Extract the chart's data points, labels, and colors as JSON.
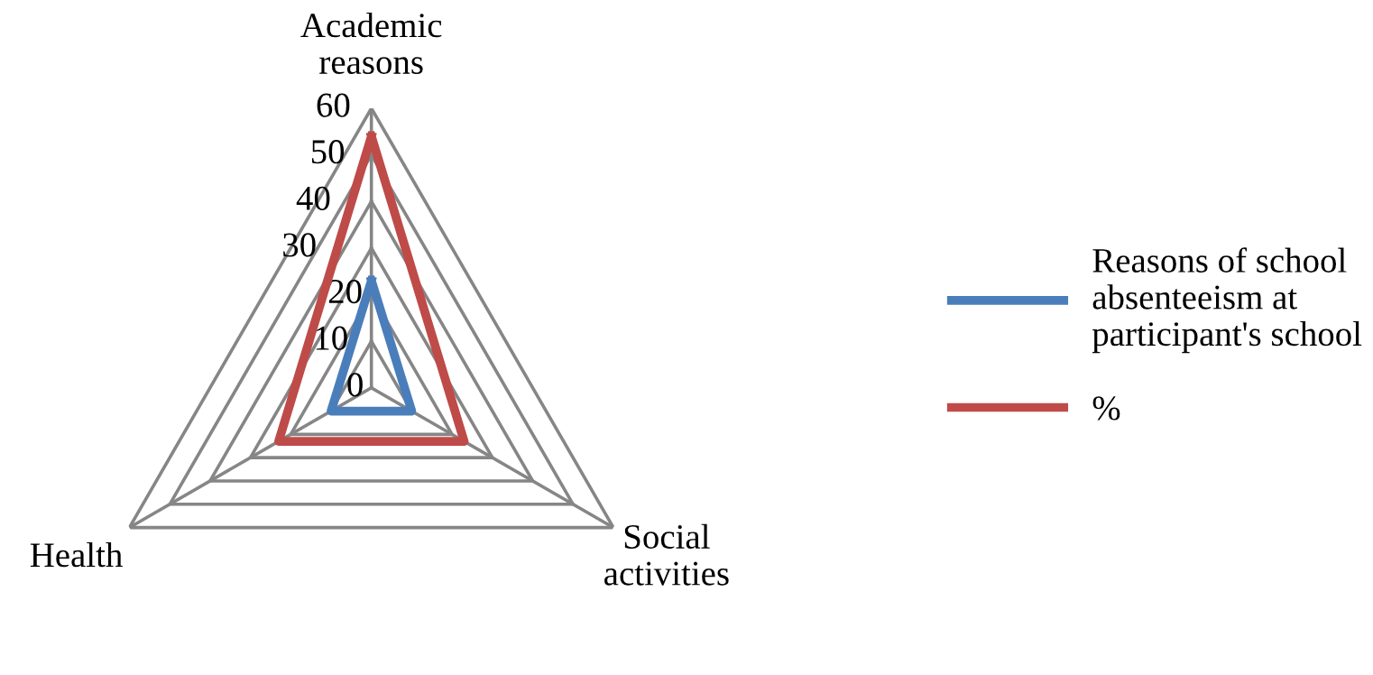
{
  "chart_data": {
    "type": "radar",
    "categories": [
      "Academic reasons",
      "Social activities",
      "Health"
    ],
    "series": [
      {
        "name": "Reasons of school absenteeism at participant's school",
        "color": "#4a7ebb",
        "values": [
          23,
          10,
          10
        ]
      },
      {
        "name": "%",
        "color": "#be4b48",
        "values": [
          54,
          23,
          23
        ]
      }
    ],
    "ylim": [
      0,
      60
    ],
    "yticks": [
      0,
      10,
      20,
      30,
      40,
      50,
      60
    ],
    "grid": true,
    "legend": "right"
  }
}
